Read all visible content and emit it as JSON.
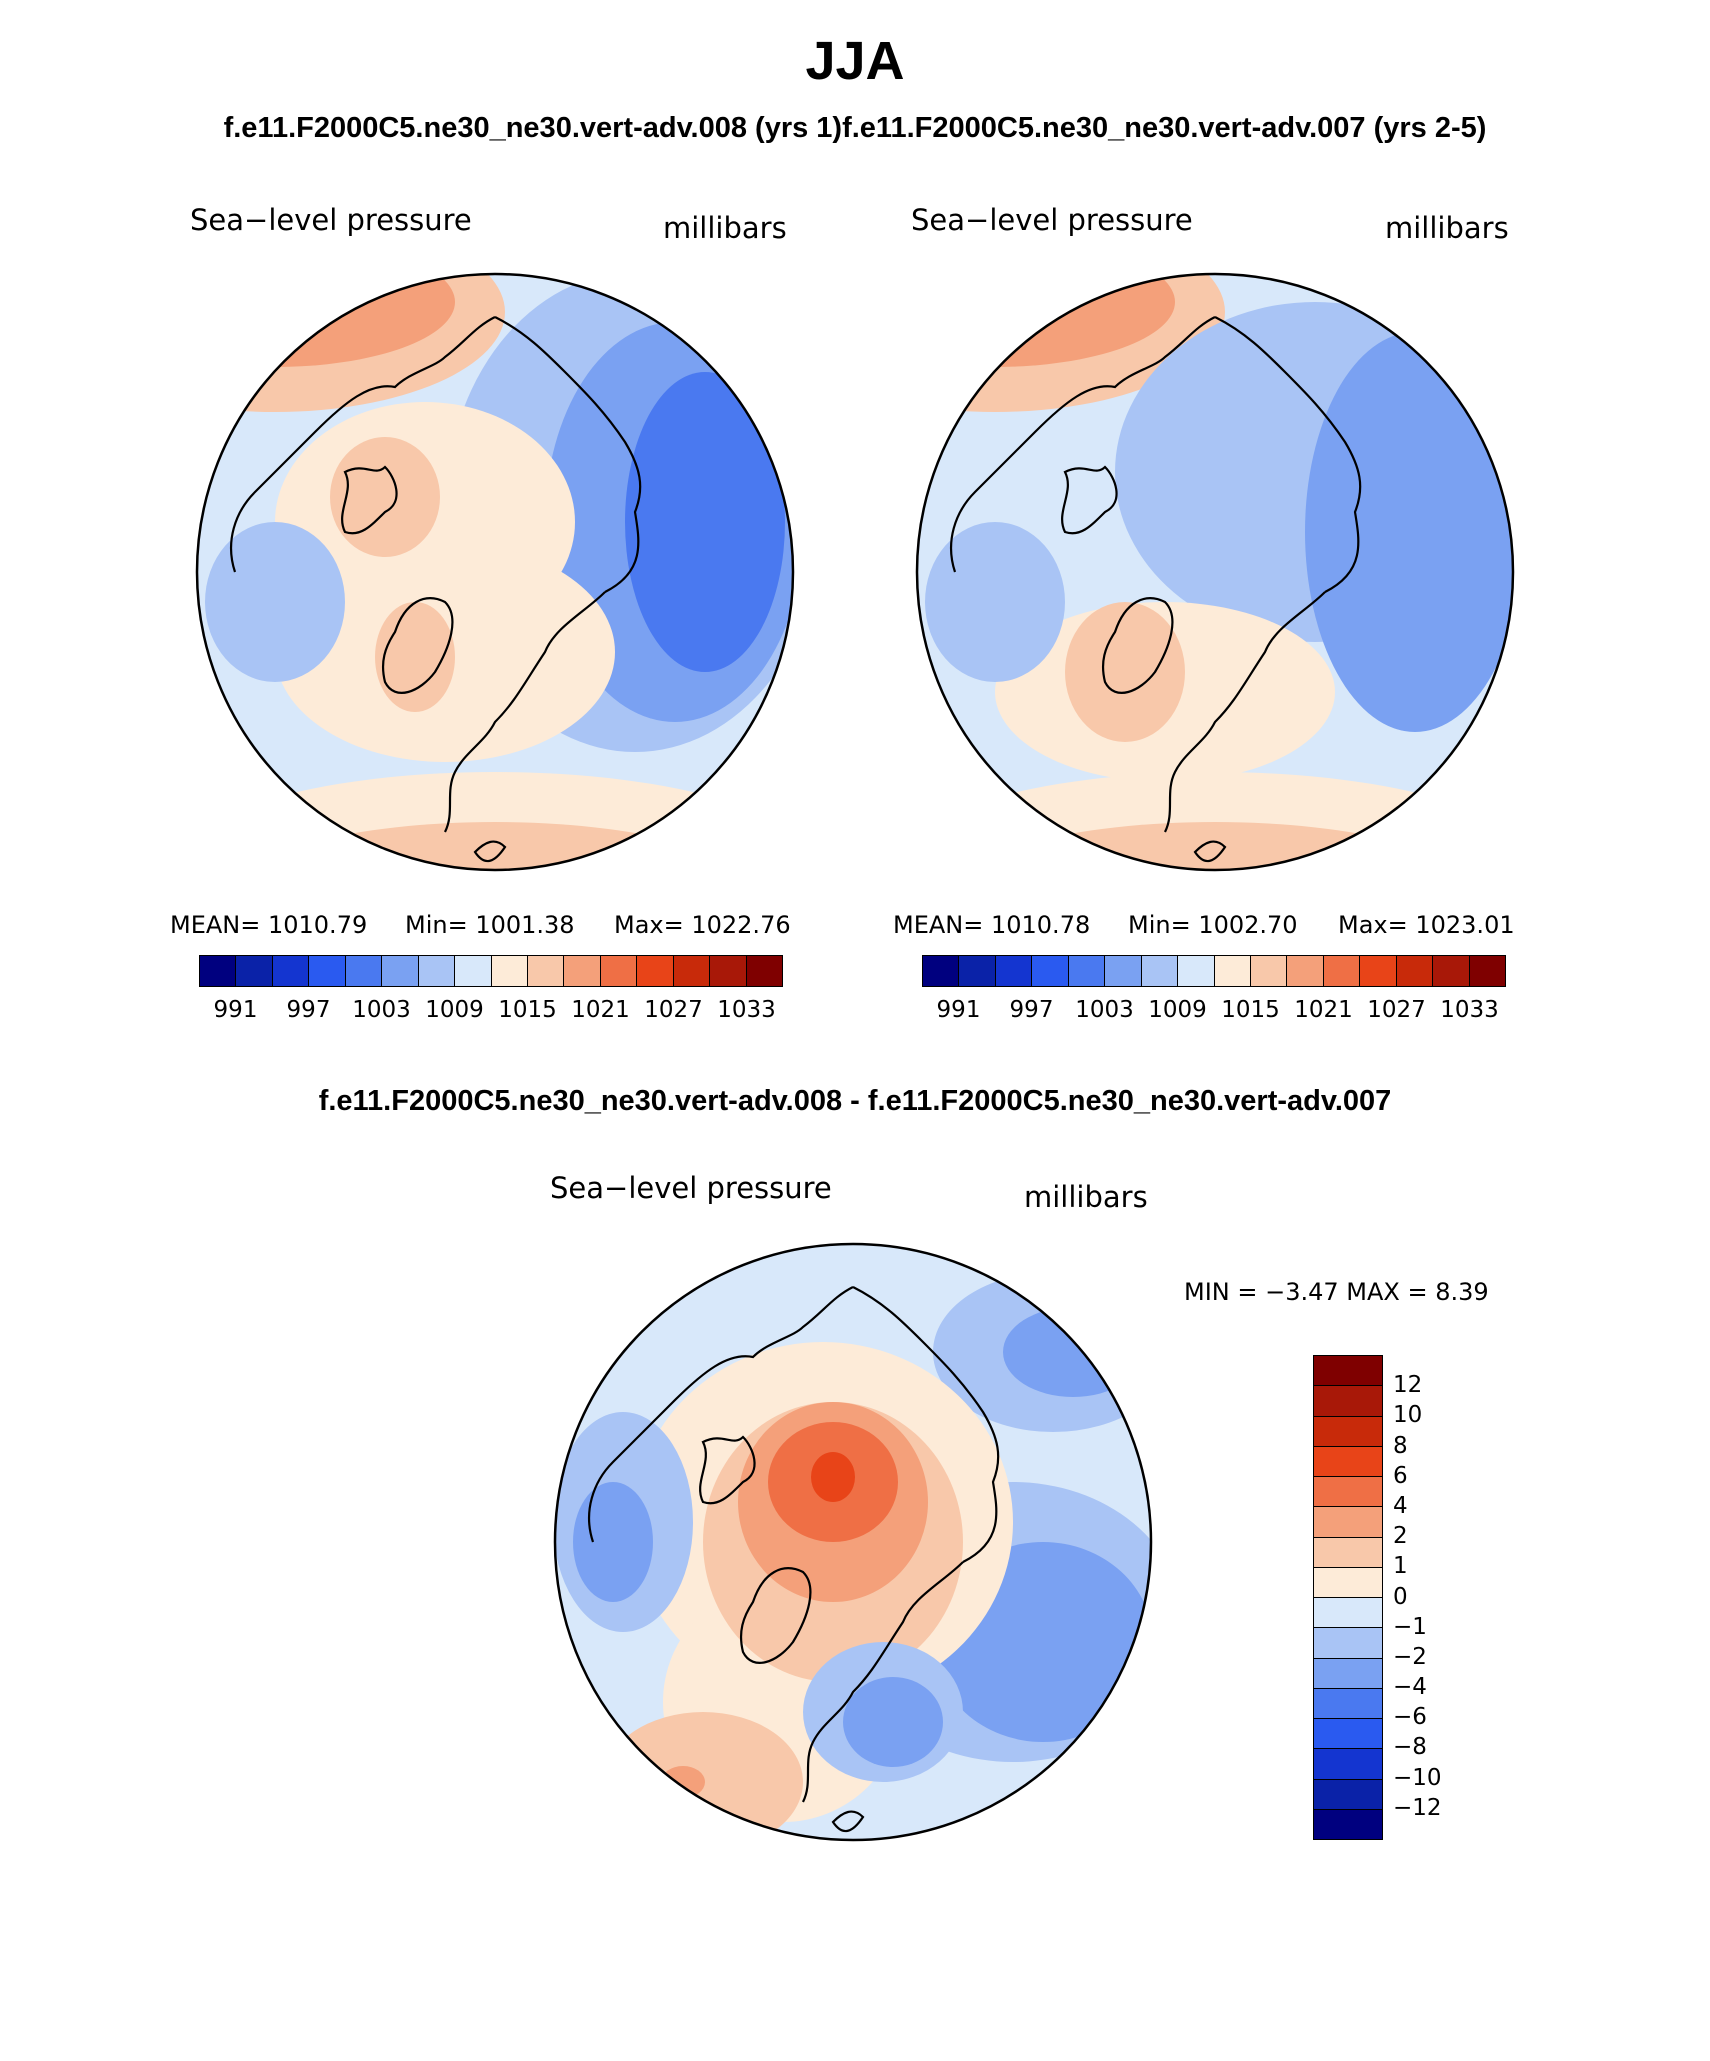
{
  "title": "JJA",
  "subtitle_top": "f.e11.F2000C5.ne30_ne30.vert-adv.008 (yrs 1)f.e11.F2000C5.ne30_ne30.vert-adv.007 (yrs 2-5)",
  "subtitle_diff": "f.e11.F2000C5.ne30_ne30.vert-adv.008 - f.e11.F2000C5.ne30_ne30.vert-adv.007",
  "panels": [
    {
      "variable": "Sea−level pressure",
      "units": "millibars",
      "stats": {
        "mean": "MEAN= 1010.79",
        "min": "Min= 1001.38",
        "max": "Max= 1022.76"
      }
    },
    {
      "variable": "Sea−level pressure",
      "units": "millibars",
      "stats": {
        "mean": "MEAN= 1010.78",
        "min": "Min= 1002.70",
        "max": "Max= 1023.01"
      }
    },
    {
      "variable": "Sea−level pressure",
      "units": "millibars",
      "stats_text": "MIN =   −3.47 MAX =    8.39"
    }
  ],
  "colorbar_abs": {
    "labels": [
      "991",
      "997",
      "1003",
      "1009",
      "1015",
      "1021",
      "1027",
      "1033"
    ],
    "colors": [
      "#00007f",
      "#0a22a8",
      "#1435d0",
      "#2a5af0",
      "#4a79f0",
      "#7aa1f2",
      "#a9c4f5",
      "#d8e8fa",
      "#fdebd8",
      "#f8c8aa",
      "#f4a07a",
      "#ef6f45",
      "#e84418",
      "#c82a0a",
      "#a81808",
      "#7f0000"
    ]
  },
  "colorbar_diff": {
    "labels": [
      "12",
      "10",
      "8",
      "6",
      "4",
      "2",
      "1",
      "0",
      "−1",
      "−2",
      "−4",
      "−6",
      "−8",
      "−10",
      "−12"
    ],
    "colors": [
      "#7f0000",
      "#a81808",
      "#c82a0a",
      "#e84418",
      "#ef6f45",
      "#f4a07a",
      "#f8c8aa",
      "#fdebd8",
      "#d8e8fa",
      "#a9c4f5",
      "#7aa1f2",
      "#4a79f0",
      "#2a5af0",
      "#1435d0",
      "#0a22a8",
      "#00007f"
    ]
  }
}
